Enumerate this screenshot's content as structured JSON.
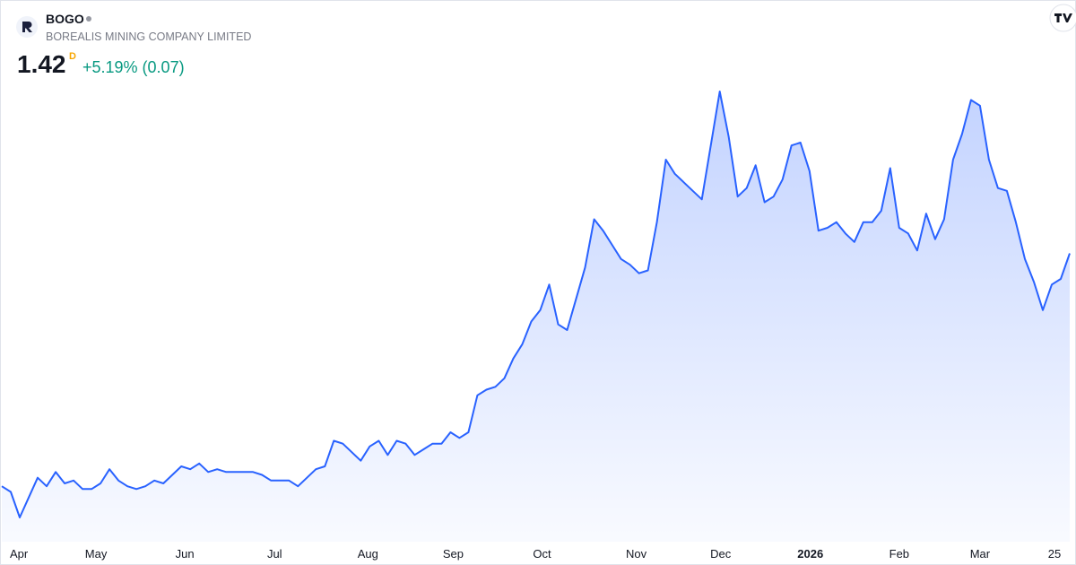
{
  "header": {
    "symbol": "BOGO",
    "company": "BOREALIS MINING COMPANY LIMITED",
    "price": "1.42",
    "interval": "D",
    "change": "+5.19% (0.07)"
  },
  "chart_data": {
    "type": "area",
    "color": "#2962ff",
    "values": [
      0.6,
      0.58,
      0.49,
      0.56,
      0.63,
      0.6,
      0.65,
      0.61,
      0.62,
      0.59,
      0.59,
      0.61,
      0.66,
      0.62,
      0.6,
      0.59,
      0.6,
      0.62,
      0.61,
      0.64,
      0.67,
      0.66,
      0.68,
      0.65,
      0.66,
      0.65,
      0.65,
      0.65,
      0.65,
      0.64,
      0.62,
      0.62,
      0.62,
      0.6,
      0.63,
      0.66,
      0.67,
      0.76,
      0.75,
      0.72,
      0.69,
      0.74,
      0.76,
      0.71,
      0.76,
      0.75,
      0.71,
      0.73,
      0.75,
      0.75,
      0.79,
      0.77,
      0.79,
      0.92,
      0.94,
      0.95,
      0.98,
      1.05,
      1.1,
      1.18,
      1.22,
      1.31,
      1.17,
      1.15,
      1.26,
      1.37,
      1.54,
      1.5,
      1.45,
      1.4,
      1.38,
      1.35,
      1.36,
      1.53,
      1.75,
      1.7,
      1.67,
      1.64,
      1.61,
      1.8,
      1.99,
      1.83,
      1.62,
      1.65,
      1.73,
      1.6,
      1.62,
      1.68,
      1.8,
      1.81,
      1.71,
      1.5,
      1.51,
      1.53,
      1.49,
      1.46,
      1.53,
      1.53,
      1.57,
      1.72,
      1.51,
      1.49,
      1.43,
      1.56,
      1.47,
      1.54,
      1.75,
      1.84,
      1.96,
      1.94,
      1.75,
      1.65,
      1.64,
      1.53,
      1.4,
      1.32,
      1.22,
      1.31,
      1.33,
      1.42
    ],
    "xticks": [
      {
        "value": 0.9,
        "label": "Apr"
      },
      {
        "value": 10.5,
        "label": "May"
      },
      {
        "value": 20.4,
        "label": "Jun"
      },
      {
        "value": 30.4,
        "label": "Jul"
      },
      {
        "value": 40.8,
        "label": "Aug"
      },
      {
        "value": 50.3,
        "label": "Sep"
      },
      {
        "value": 60.2,
        "label": "Oct"
      },
      {
        "value": 70.7,
        "label": "Nov"
      },
      {
        "value": 80.1,
        "label": "Dec"
      },
      {
        "value": 90.1,
        "label": "2026"
      },
      {
        "value": 100.0,
        "label": "Feb"
      },
      {
        "value": 109.0,
        "label": "Mar"
      },
      {
        "value": 117.3,
        "label": "25"
      }
    ]
  }
}
